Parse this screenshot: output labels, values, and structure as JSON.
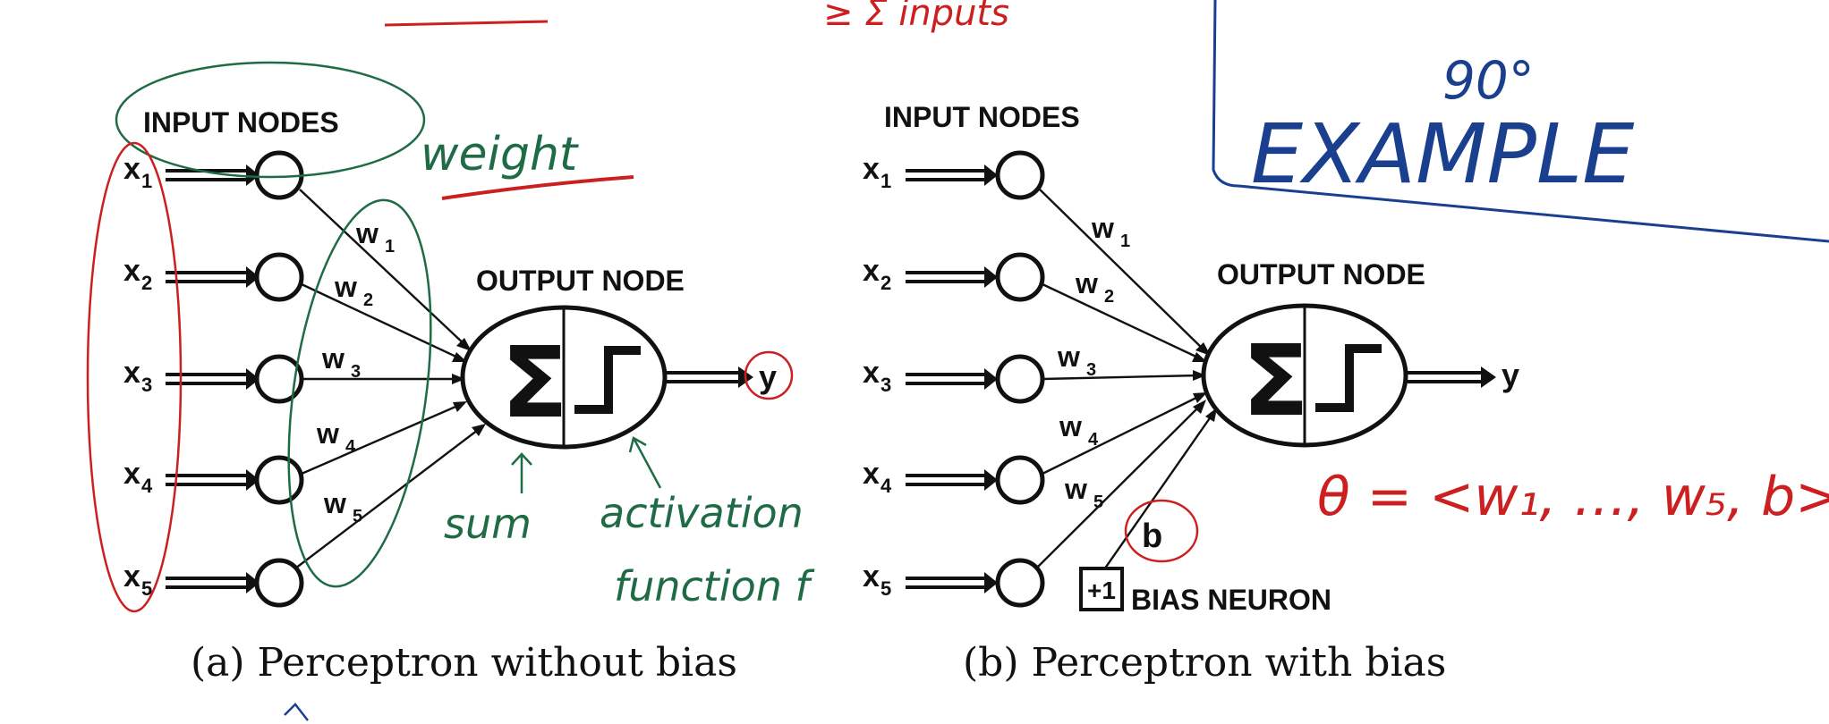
{
  "panel_a": {
    "input_title": "INPUT NODES",
    "output_title": "OUTPUT NODE",
    "inputs": [
      "x",
      "x",
      "x",
      "x",
      "x"
    ],
    "input_subs": [
      "1",
      "2",
      "3",
      "4",
      "5"
    ],
    "weights": [
      "w",
      "w",
      "w",
      "w",
      "w"
    ],
    "weight_subs": [
      "1",
      "2",
      "3",
      "4",
      "5"
    ],
    "sum_symbol": "Σ",
    "output": "y",
    "caption": "(a) Perceptron without bias"
  },
  "panel_b": {
    "input_title": "INPUT NODES",
    "output_title": "OUTPUT NODE",
    "inputs": [
      "x",
      "x",
      "x",
      "x",
      "x"
    ],
    "input_subs": [
      "1",
      "2",
      "3",
      "4",
      "5"
    ],
    "weights": [
      "w",
      "w",
      "w",
      "w",
      "w"
    ],
    "weight_subs": [
      "1",
      "2",
      "3",
      "4",
      "5"
    ],
    "sum_symbol": "Σ",
    "output": "y",
    "bias_weight": "b",
    "bias_box": "+1",
    "bias_label": "BIAS NEURON",
    "caption": "(b) Perceptron with bias"
  },
  "annotations": {
    "weight": "weight",
    "sum": "sum",
    "activation_line1": "activation",
    "activation_line2": "function f",
    "theta": "θ = <w₁, …, w₅, b>",
    "example": "EXAMPLE",
    "degrees": "90°",
    "top_red": "≥ Σ inputs"
  },
  "colors": {
    "ink": "#111111",
    "red_annotation": "#cc1f1f",
    "green_annotation": "#1f6b45",
    "blue_annotation": "#1a3f8f"
  }
}
